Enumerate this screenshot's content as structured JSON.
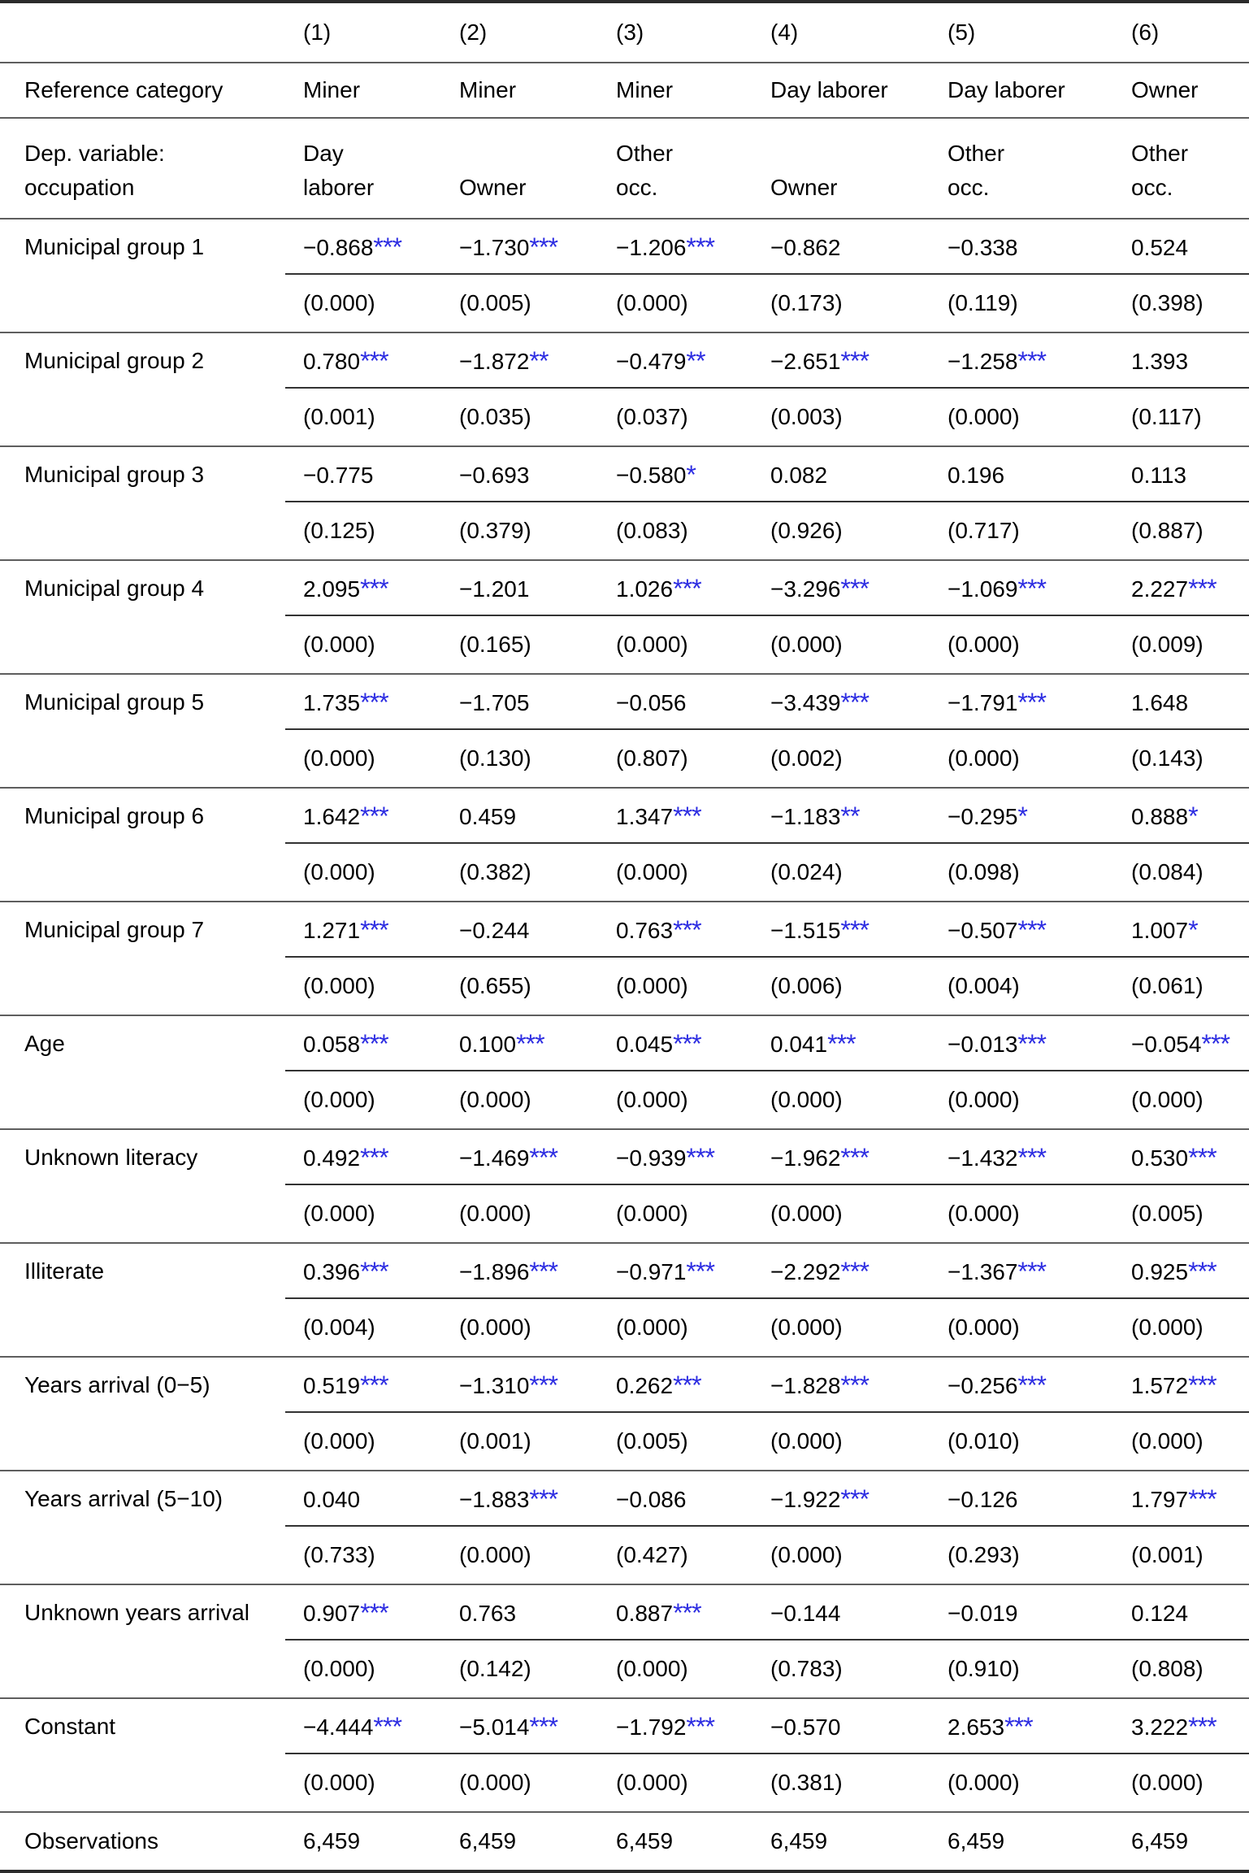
{
  "styles": {
    "star_color": "#2d2de2",
    "text_color": "#000000",
    "sep_color": "#5e5e5e",
    "inner_line": "#333333",
    "outer_line": "#2b2b2b",
    "bg": "#ffffff"
  },
  "header": {
    "col_numbers": [
      "(1)",
      "(2)",
      "(3)",
      "(4)",
      "(5)",
      "(6)"
    ]
  },
  "reference": {
    "label": "Reference category",
    "values": [
      "Miner",
      "Miner",
      "Miner",
      "Day laborer",
      "Day laborer",
      "Owner"
    ]
  },
  "dep_variable": {
    "label_lines": [
      "Dep. variable:",
      "occupation"
    ],
    "values": [
      [
        "Day",
        "laborer"
      ],
      [
        "Owner"
      ],
      [
        "Other",
        "occ."
      ],
      [
        "Owner"
      ],
      [
        "Other",
        "occ."
      ],
      [
        "Other",
        "occ."
      ]
    ]
  },
  "rows": [
    {
      "label": "Municipal group 1",
      "coefficients": [
        {
          "value": "−0.868",
          "stars": "***"
        },
        {
          "value": "−1.730",
          "stars": "***"
        },
        {
          "value": "−1.206",
          "stars": "***"
        },
        {
          "value": "−0.862",
          "stars": ""
        },
        {
          "value": "−0.338",
          "stars": ""
        },
        {
          "value": "0.524",
          "stars": ""
        }
      ],
      "p_values": [
        "(0.000)",
        "(0.005)",
        "(0.000)",
        "(0.173)",
        "(0.119)",
        "(0.398)"
      ]
    },
    {
      "label": "Municipal group 2",
      "coefficients": [
        {
          "value": "0.780",
          "stars": "***"
        },
        {
          "value": "−1.872",
          "stars": "**"
        },
        {
          "value": "−0.479",
          "stars": "**"
        },
        {
          "value": "−2.651",
          "stars": "***"
        },
        {
          "value": "−1.258",
          "stars": "***"
        },
        {
          "value": "1.393",
          "stars": ""
        }
      ],
      "p_values": [
        "(0.001)",
        "(0.035)",
        "(0.037)",
        "(0.003)",
        "(0.000)",
        "(0.117)"
      ]
    },
    {
      "label": "Municipal group 3",
      "coefficients": [
        {
          "value": "−0.775",
          "stars": ""
        },
        {
          "value": "−0.693",
          "stars": ""
        },
        {
          "value": "−0.580",
          "stars": "*"
        },
        {
          "value": "0.082",
          "stars": ""
        },
        {
          "value": "0.196",
          "stars": ""
        },
        {
          "value": "0.113",
          "stars": ""
        }
      ],
      "p_values": [
        "(0.125)",
        "(0.379)",
        "(0.083)",
        "(0.926)",
        "(0.717)",
        "(0.887)"
      ]
    },
    {
      "label": "Municipal group 4",
      "coefficients": [
        {
          "value": "2.095",
          "stars": "***"
        },
        {
          "value": "−1.201",
          "stars": ""
        },
        {
          "value": "1.026",
          "stars": "***"
        },
        {
          "value": "−3.296",
          "stars": "***"
        },
        {
          "value": "−1.069",
          "stars": "***"
        },
        {
          "value": "2.227",
          "stars": "***"
        }
      ],
      "p_values": [
        "(0.000)",
        "(0.165)",
        "(0.000)",
        "(0.000)",
        "(0.000)",
        "(0.009)"
      ]
    },
    {
      "label": "Municipal group 5",
      "coefficients": [
        {
          "value": "1.735",
          "stars": "***"
        },
        {
          "value": "−1.705",
          "stars": ""
        },
        {
          "value": "−0.056",
          "stars": ""
        },
        {
          "value": "−3.439",
          "stars": "***"
        },
        {
          "value": "−1.791",
          "stars": "***"
        },
        {
          "value": "1.648",
          "stars": ""
        }
      ],
      "p_values": [
        "(0.000)",
        "(0.130)",
        "(0.807)",
        "(0.002)",
        "(0.000)",
        "(0.143)"
      ]
    },
    {
      "label": "Municipal group 6",
      "coefficients": [
        {
          "value": "1.642",
          "stars": "***"
        },
        {
          "value": "0.459",
          "stars": ""
        },
        {
          "value": "1.347",
          "stars": "***"
        },
        {
          "value": "−1.183",
          "stars": "**"
        },
        {
          "value": "−0.295",
          "stars": "*"
        },
        {
          "value": "0.888",
          "stars": "*"
        }
      ],
      "p_values": [
        "(0.000)",
        "(0.382)",
        "(0.000)",
        "(0.024)",
        "(0.098)",
        "(0.084)"
      ]
    },
    {
      "label": "Municipal group 7",
      "coefficients": [
        {
          "value": "1.271",
          "stars": "***"
        },
        {
          "value": "−0.244",
          "stars": ""
        },
        {
          "value": "0.763",
          "stars": "***"
        },
        {
          "value": "−1.515",
          "stars": "***"
        },
        {
          "value": "−0.507",
          "stars": "***"
        },
        {
          "value": "1.007",
          "stars": "*"
        }
      ],
      "p_values": [
        "(0.000)",
        "(0.655)",
        "(0.000)",
        "(0.006)",
        "(0.004)",
        "(0.061)"
      ]
    },
    {
      "label": "Age",
      "coefficients": [
        {
          "value": "0.058",
          "stars": "***"
        },
        {
          "value": "0.100",
          "stars": "***"
        },
        {
          "value": "0.045",
          "stars": "***"
        },
        {
          "value": "0.041",
          "stars": "***"
        },
        {
          "value": "−0.013",
          "stars": "***"
        },
        {
          "value": "−0.054",
          "stars": "***"
        }
      ],
      "p_values": [
        "(0.000)",
        "(0.000)",
        "(0.000)",
        "(0.000)",
        "(0.000)",
        "(0.000)"
      ]
    },
    {
      "label": "Unknown literacy",
      "coefficients": [
        {
          "value": "0.492",
          "stars": "***"
        },
        {
          "value": "−1.469",
          "stars": "***"
        },
        {
          "value": "−0.939",
          "stars": "***"
        },
        {
          "value": "−1.962",
          "stars": "***"
        },
        {
          "value": "−1.432",
          "stars": "***"
        },
        {
          "value": "0.530",
          "stars": "***"
        }
      ],
      "p_values": [
        "(0.000)",
        "(0.000)",
        "(0.000)",
        "(0.000)",
        "(0.000)",
        "(0.005)"
      ]
    },
    {
      "label": "Illiterate",
      "coefficients": [
        {
          "value": "0.396",
          "stars": "***"
        },
        {
          "value": "−1.896",
          "stars": "***"
        },
        {
          "value": "−0.971",
          "stars": "***"
        },
        {
          "value": "−2.292",
          "stars": "***"
        },
        {
          "value": "−1.367",
          "stars": "***"
        },
        {
          "value": "0.925",
          "stars": "***"
        }
      ],
      "p_values": [
        "(0.004)",
        "(0.000)",
        "(0.000)",
        "(0.000)",
        "(0.000)",
        "(0.000)"
      ]
    },
    {
      "label": "Years arrival (0−5)",
      "coefficients": [
        {
          "value": "0.519",
          "stars": "***"
        },
        {
          "value": "−1.310",
          "stars": "***"
        },
        {
          "value": "0.262",
          "stars": "***"
        },
        {
          "value": "−1.828",
          "stars": "***"
        },
        {
          "value": "−0.256",
          "stars": "***"
        },
        {
          "value": "1.572",
          "stars": "***"
        }
      ],
      "p_values": [
        "(0.000)",
        "(0.001)",
        "(0.005)",
        "(0.000)",
        "(0.010)",
        "(0.000)"
      ]
    },
    {
      "label": "Years arrival (5−10)",
      "coefficients": [
        {
          "value": "0.040",
          "stars": ""
        },
        {
          "value": "−1.883",
          "stars": "***"
        },
        {
          "value": "−0.086",
          "stars": ""
        },
        {
          "value": "−1.922",
          "stars": "***"
        },
        {
          "value": "−0.126",
          "stars": ""
        },
        {
          "value": "1.797",
          "stars": "***"
        }
      ],
      "p_values": [
        "(0.733)",
        "(0.000)",
        "(0.427)",
        "(0.000)",
        "(0.293)",
        "(0.001)"
      ]
    },
    {
      "label": "Unknown years arrival",
      "coefficients": [
        {
          "value": "0.907",
          "stars": "***"
        },
        {
          "value": "0.763",
          "stars": ""
        },
        {
          "value": "0.887",
          "stars": "***"
        },
        {
          "value": "−0.144",
          "stars": ""
        },
        {
          "value": "−0.019",
          "stars": ""
        },
        {
          "value": "0.124",
          "stars": ""
        }
      ],
      "p_values": [
        "(0.000)",
        "(0.142)",
        "(0.000)",
        "(0.783)",
        "(0.910)",
        "(0.808)"
      ]
    },
    {
      "label": "Constant",
      "coefficients": [
        {
          "value": "−4.444",
          "stars": "***"
        },
        {
          "value": "−5.014",
          "stars": "***"
        },
        {
          "value": "−1.792",
          "stars": "***"
        },
        {
          "value": "−0.570",
          "stars": ""
        },
        {
          "value": "2.653",
          "stars": "***"
        },
        {
          "value": "3.222",
          "stars": "***"
        }
      ],
      "p_values": [
        "(0.000)",
        "(0.000)",
        "(0.000)",
        "(0.381)",
        "(0.000)",
        "(0.000)"
      ]
    }
  ],
  "observations": {
    "label": "Observations",
    "values": [
      "6,459",
      "6,459",
      "6,459",
      "6,459",
      "6,459",
      "6,459"
    ]
  }
}
